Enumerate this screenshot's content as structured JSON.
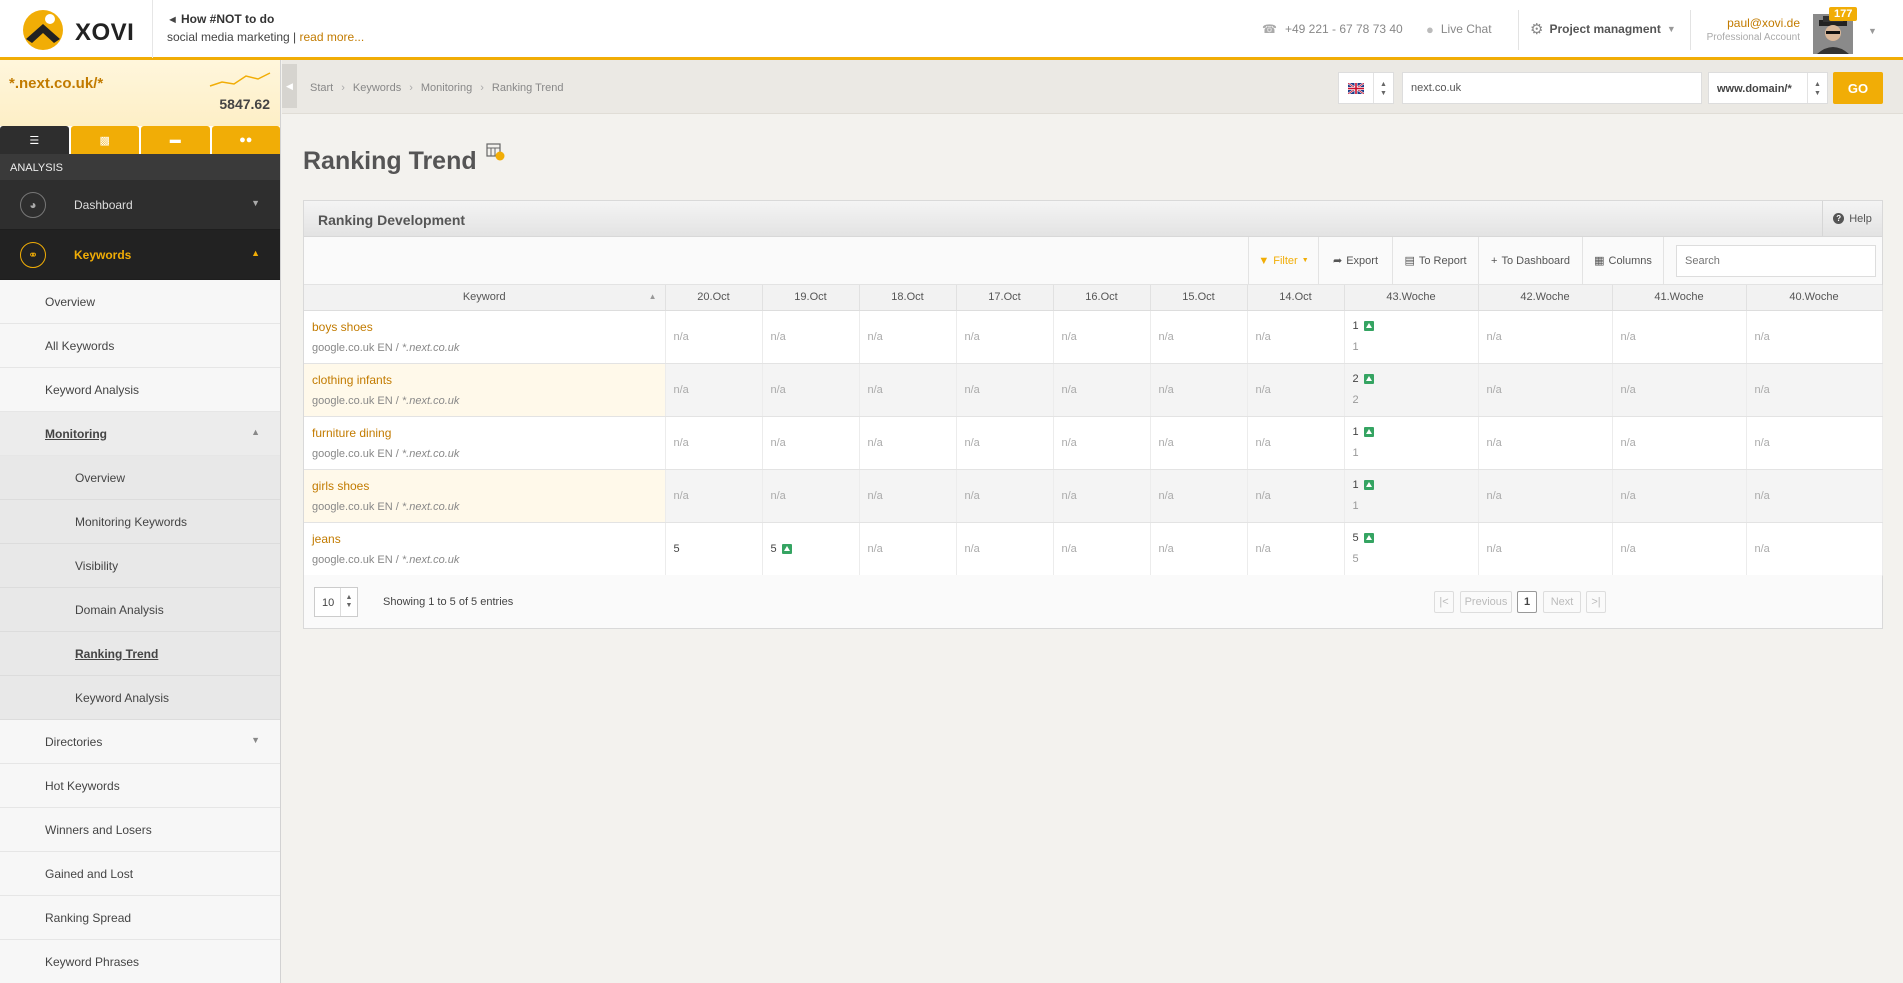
{
  "header": {
    "logo_text": "XOVI",
    "promo_title": "How #NOT to do",
    "promo_text": "social media marketing |",
    "promo_link": "read more...",
    "phone": "+49 221 - 67 78 73 40",
    "live_chat": "Live Chat",
    "project_menu": "Project managment",
    "user_email": "paul@xovi.de",
    "account_type": "Professional Account",
    "notification_count": "177"
  },
  "sidebar": {
    "project_name": "*.next.co.uk/*",
    "project_value": "5847.62",
    "section_label": "ANALYSIS",
    "main_items": [
      {
        "label": "Dashboard"
      },
      {
        "label": "Keywords"
      }
    ],
    "keyword_items": [
      {
        "label": "Overview"
      },
      {
        "label": "All Keywords"
      },
      {
        "label": "Keyword Analysis"
      },
      {
        "label": "Monitoring"
      }
    ],
    "monitoring_items": [
      {
        "label": "Overview"
      },
      {
        "label": "Monitoring Keywords"
      },
      {
        "label": "Visibility"
      },
      {
        "label": "Domain Analysis"
      },
      {
        "label": "Ranking Trend"
      },
      {
        "label": "Keyword Analysis"
      }
    ],
    "more_items": [
      {
        "label": "Directories"
      },
      {
        "label": "Hot Keywords"
      },
      {
        "label": "Winners and Losers"
      },
      {
        "label": "Gained and Lost"
      },
      {
        "label": "Ranking Spread"
      },
      {
        "label": "Keyword Phrases"
      }
    ]
  },
  "breadcrumb": [
    "Start",
    "Keywords",
    "Monitoring",
    "Ranking Trend"
  ],
  "domain_search": {
    "value": "next.co.uk",
    "mode": "www.domain/*",
    "go_label": "GO"
  },
  "page_title": "Ranking Trend",
  "panel": {
    "title": "Ranking Development",
    "help_label": "Help",
    "toolbar": {
      "filter": "Filter",
      "export": "Export",
      "to_report": "To Report",
      "to_dashboard": "To Dashboard",
      "columns": "Columns",
      "search_placeholder": "Search"
    },
    "columns": [
      "Keyword",
      "20.Oct",
      "19.Oct",
      "18.Oct",
      "17.Oct",
      "16.Oct",
      "15.Oct",
      "14.Oct",
      "43.Woche",
      "42.Woche",
      "41.Woche",
      "40.Woche"
    ],
    "rows": [
      {
        "keyword": "boys shoes",
        "engine": "google.co.uk EN",
        "domain": "*.next.co.uk",
        "d20": "n/a",
        "d19": "n/a",
        "d18": "n/a",
        "d17": "n/a",
        "d16": "n/a",
        "d15": "n/a",
        "d14": "n/a",
        "w43": "1",
        "w43_prev": "1",
        "w42": "n/a",
        "w41": "n/a",
        "w40": "n/a"
      },
      {
        "keyword": "clothing infants",
        "engine": "google.co.uk EN",
        "domain": "*.next.co.uk",
        "d20": "n/a",
        "d19": "n/a",
        "d18": "n/a",
        "d17": "n/a",
        "d16": "n/a",
        "d15": "n/a",
        "d14": "n/a",
        "w43": "2",
        "w43_prev": "2",
        "w42": "n/a",
        "w41": "n/a",
        "w40": "n/a"
      },
      {
        "keyword": "furniture dining",
        "engine": "google.co.uk EN",
        "domain": "*.next.co.uk",
        "d20": "n/a",
        "d19": "n/a",
        "d18": "n/a",
        "d17": "n/a",
        "d16": "n/a",
        "d15": "n/a",
        "d14": "n/a",
        "w43": "1",
        "w43_prev": "1",
        "w42": "n/a",
        "w41": "n/a",
        "w40": "n/a"
      },
      {
        "keyword": "girls shoes",
        "engine": "google.co.uk EN",
        "domain": "*.next.co.uk",
        "d20": "n/a",
        "d19": "n/a",
        "d18": "n/a",
        "d17": "n/a",
        "d16": "n/a",
        "d15": "n/a",
        "d14": "n/a",
        "w43": "1",
        "w43_prev": "1",
        "w42": "n/a",
        "w41": "n/a",
        "w40": "n/a"
      },
      {
        "keyword": "jeans",
        "engine": "google.co.uk EN",
        "domain": "*.next.co.uk",
        "d20": "5",
        "d19": "5",
        "d18": "n/a",
        "d17": "n/a",
        "d16": "n/a",
        "d15": "n/a",
        "d14": "n/a",
        "w43": "5",
        "w43_prev": "5",
        "w42": "n/a",
        "w41": "n/a",
        "w40": "n/a"
      }
    ],
    "footer": {
      "page_size": "10",
      "showing": "Showing 1 to 5 of 5 entries",
      "first": "|<",
      "previous": "Previous",
      "current_page": "1",
      "next": "Next",
      "last": ">|"
    }
  },
  "colors": {
    "accent": "#f1ad06",
    "link": "#c27b00",
    "trend_up": "#35a462"
  }
}
